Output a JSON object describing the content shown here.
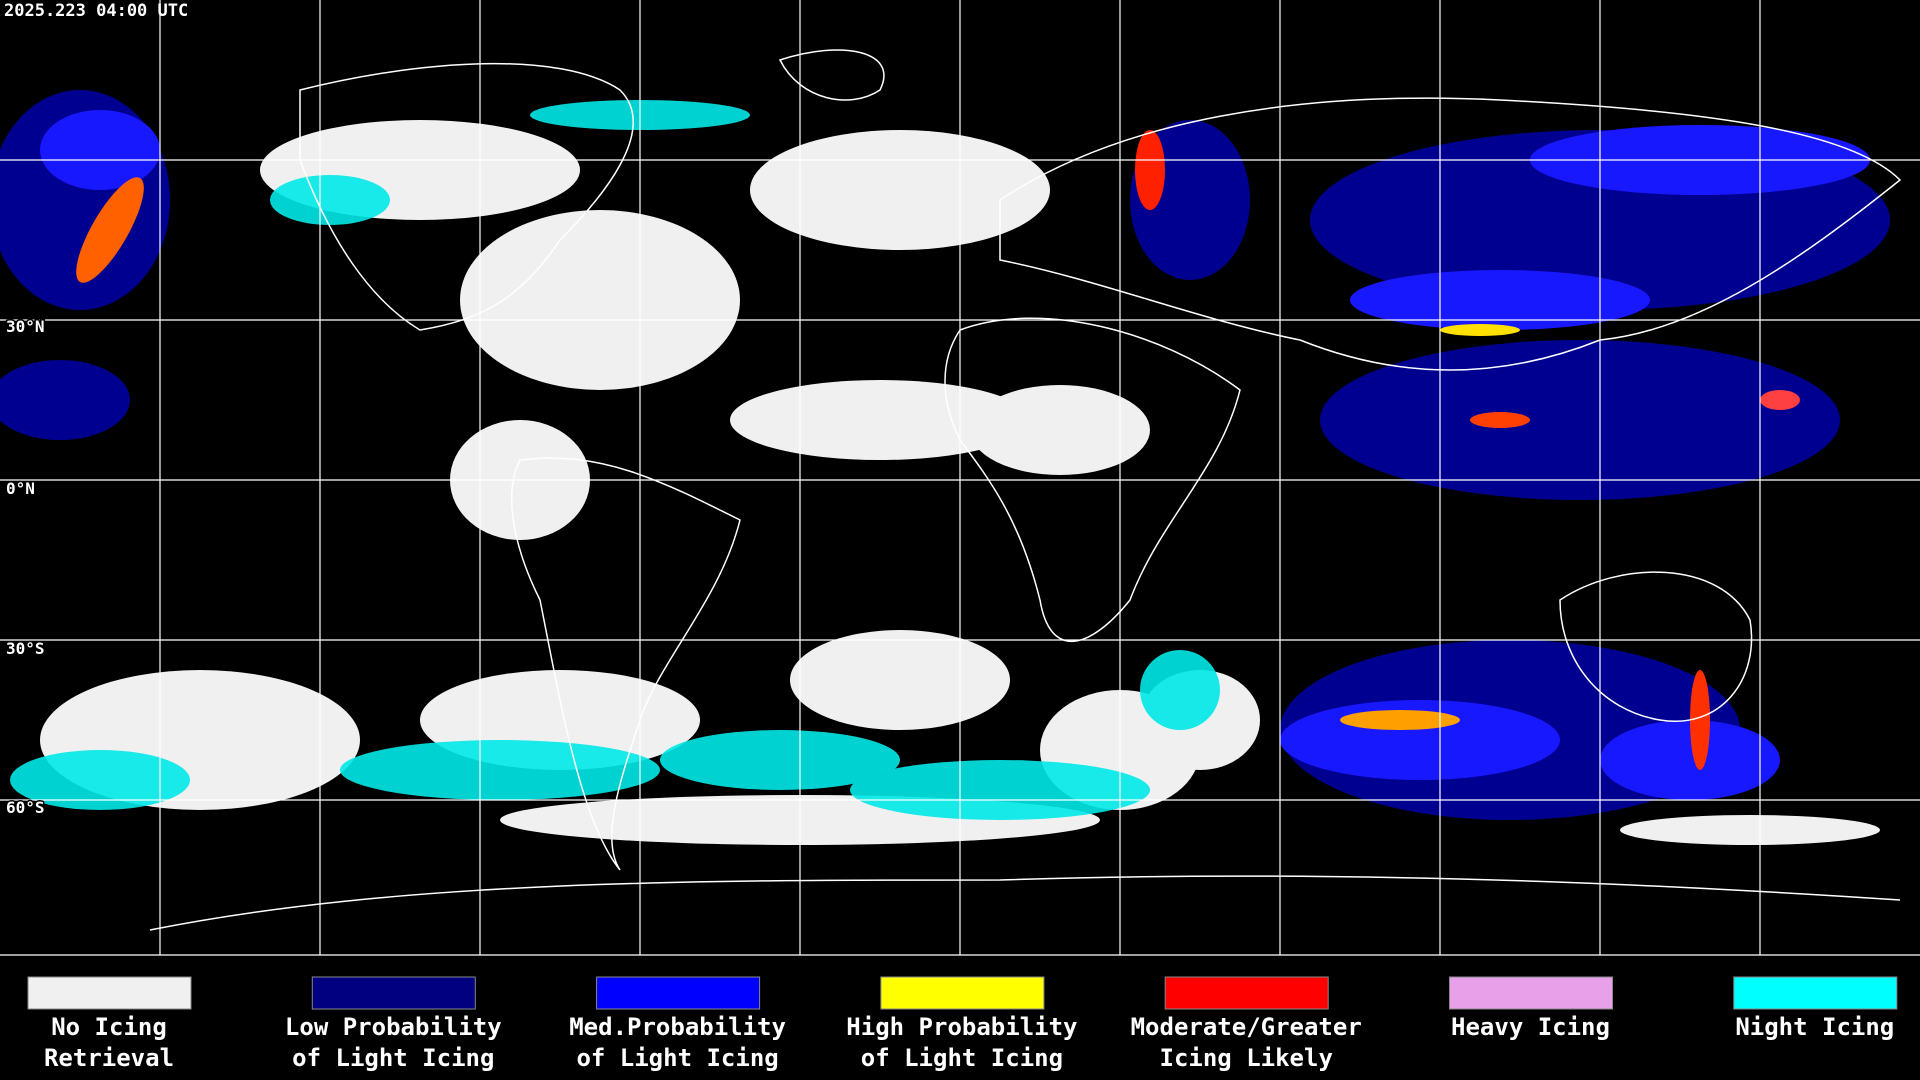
{
  "header": {
    "timestamp": "2025.223 04:00 UTC"
  },
  "map": {
    "latitude_labels": [
      "30°N",
      "0°N",
      "30°S",
      "60°S"
    ]
  },
  "legend": {
    "items": [
      {
        "color": "#f0f0f0",
        "lines": [
          "No Icing",
          "Retrieval"
        ]
      },
      {
        "color": "#000080",
        "lines": [
          "Low Probability",
          "of Light Icing"
        ]
      },
      {
        "color": "#0000ff",
        "lines": [
          "Med.Probability",
          "of Light Icing"
        ]
      },
      {
        "color": "#ffff00",
        "lines": [
          "High Probability",
          "of Light Icing"
        ]
      },
      {
        "color": "#ff0000",
        "lines": [
          "Moderate/Greater",
          "Icing Likely"
        ]
      },
      {
        "color": "#e8a0e8",
        "lines": [
          "Heavy Icing"
        ]
      },
      {
        "color": "#00ffff",
        "lines": [
          "Night Icing"
        ]
      }
    ]
  }
}
